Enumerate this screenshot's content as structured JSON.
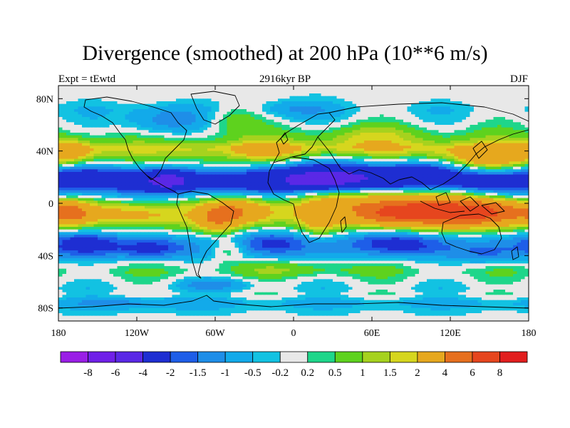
{
  "title": "Divergence (smoothed) at 200 hPa (10**6 m/s)",
  "subtitle_left": "Expt = tEwtd",
  "subtitle_center": "2916kyr BP",
  "subtitle_right": "DJF",
  "chart_data": {
    "type": "heatmap",
    "projection": "cylindrical-equidistant",
    "variable": "Divergence (smoothed) at 200 hPa",
    "units": "10**6 m/s",
    "experiment": "tEwtd",
    "period": "2916kyr BP",
    "season": "DJF",
    "x_range": [
      -180,
      180
    ],
    "y_range": [
      -90,
      90
    ],
    "x_ticks": [
      {
        "value": -180,
        "label": "180"
      },
      {
        "value": -120,
        "label": "120W"
      },
      {
        "value": -60,
        "label": "60W"
      },
      {
        "value": 0,
        "label": "0"
      },
      {
        "value": 60,
        "label": "60E"
      },
      {
        "value": 120,
        "label": "120E"
      },
      {
        "value": 180,
        "label": "180"
      }
    ],
    "y_ticks": [
      {
        "value": 80,
        "label": "80N"
      },
      {
        "value": 40,
        "label": "40N"
      },
      {
        "value": 0,
        "label": "0"
      },
      {
        "value": -40,
        "label": "40S"
      },
      {
        "value": -80,
        "label": "80S"
      }
    ],
    "contour_levels": [
      {
        "value": "-8",
        "label": "-8"
      },
      {
        "value": "-6",
        "label": "-6"
      },
      {
        "value": "-4",
        "label": "-4"
      },
      {
        "value": "-2",
        "label": "-2"
      },
      {
        "value": "-1.5",
        "label": "-1.5"
      },
      {
        "value": "-1",
        "label": "-1"
      },
      {
        "value": "-0.5",
        "label": "-0.5"
      },
      {
        "value": "-0.2",
        "label": "-0.2"
      },
      {
        "value": "0.2",
        "label": "0.2"
      },
      {
        "value": "0.5",
        "label": "0.5"
      },
      {
        "value": "1",
        "label": "1"
      },
      {
        "value": "1.5",
        "label": "1.5"
      },
      {
        "value": "2",
        "label": "2"
      },
      {
        "value": "4",
        "label": "4"
      },
      {
        "value": "6",
        "label": "6"
      },
      {
        "value": "8",
        "label": "8"
      }
    ],
    "colors": [
      "#9a1ee6",
      "#7020e8",
      "#5a28e6",
      "#1e2ed2",
      "#1e5ee8",
      "#1e8ee8",
      "#12aaea",
      "#12c2e2",
      "#e8e8e8",
      "#1ed68a",
      "#5ed21e",
      "#a6d21e",
      "#d6d61e",
      "#e6a81e",
      "#e6701e",
      "#e6461e",
      "#e21e1e"
    ],
    "band_profile": [
      {
        "lat": 88,
        "value": 0.0
      },
      {
        "lat": 80,
        "value": 0.0
      },
      {
        "lat": 72,
        "value": -0.3
      },
      {
        "lat": 64,
        "value": -0.1
      },
      {
        "lat": 56,
        "value": 0.3
      },
      {
        "lat": 48,
        "value": 0.8
      },
      {
        "lat": 42,
        "value": 1.8
      },
      {
        "lat": 36,
        "value": 1.0
      },
      {
        "lat": 30,
        "value": 0.1
      },
      {
        "lat": 26,
        "value": -1.0
      },
      {
        "lat": 20,
        "value": -2.5
      },
      {
        "lat": 14,
        "value": -2.8
      },
      {
        "lat": 8,
        "value": -1.2
      },
      {
        "lat": 3,
        "value": -0.1
      },
      {
        "lat": -3,
        "value": 1.2
      },
      {
        "lat": -10,
        "value": 1.6
      },
      {
        "lat": -16,
        "value": 1.0
      },
      {
        "lat": -22,
        "value": 0.1
      },
      {
        "lat": -28,
        "value": -0.8
      },
      {
        "lat": -34,
        "value": -1.0
      },
      {
        "lat": -40,
        "value": -0.6
      },
      {
        "lat": -46,
        "value": 0.1
      },
      {
        "lat": -52,
        "value": 0.4
      },
      {
        "lat": -58,
        "value": 0.1
      },
      {
        "lat": -64,
        "value": -0.2
      },
      {
        "lat": -70,
        "value": 0.0
      },
      {
        "lat": -76,
        "value": -0.7
      },
      {
        "lat": -82,
        "value": -0.3
      },
      {
        "lat": -90,
        "value": 0.0
      }
    ],
    "anomalies": [
      {
        "lon": 105,
        "lat": -5,
        "value": 5.2,
        "rlon": 48,
        "rlat": 12
      },
      {
        "lon": 150,
        "lat": -7,
        "value": 3.4,
        "rlon": 28,
        "rlat": 10
      },
      {
        "lon": 40,
        "lat": 5,
        "value": 2.5,
        "rlon": 45,
        "rlat": 10
      },
      {
        "lon": 70,
        "lat": -8,
        "value": 2.2,
        "rlon": 25,
        "rlat": 8
      },
      {
        "lon": -40,
        "lat": -5,
        "value": 2.5,
        "rlon": 22,
        "rlat": 10
      },
      {
        "lon": -58,
        "lat": -12,
        "value": 2.6,
        "rlon": 14,
        "rlat": 10
      },
      {
        "lon": -170,
        "lat": -7,
        "value": 3.2,
        "rlon": 14,
        "rlat": 8
      },
      {
        "lon": 20,
        "lat": -12,
        "value": 1.6,
        "rlon": 14,
        "rlat": 12
      },
      {
        "lon": -120,
        "lat": -8,
        "value": 1.0,
        "rlon": 30,
        "rlat": 8
      },
      {
        "lon": 25,
        "lat": 20,
        "value": -3.0,
        "rlon": 38,
        "rlat": 14
      },
      {
        "lon": -95,
        "lat": 18,
        "value": -2.2,
        "rlon": 18,
        "rlat": 8
      },
      {
        "lon": -160,
        "lat": 24,
        "value": -1.0,
        "rlon": 25,
        "rlat": 8
      },
      {
        "lon": 100,
        "lat": 26,
        "value": -1.8,
        "rlon": 35,
        "rlat": 8
      },
      {
        "lon": 150,
        "lat": 34,
        "value": 2.6,
        "rlon": 30,
        "rlat": 10
      },
      {
        "lon": -170,
        "lat": 40,
        "value": 1.8,
        "rlon": 15,
        "rlat": 8
      },
      {
        "lon": -20,
        "lat": 40,
        "value": 1.5,
        "rlon": 25,
        "rlat": 8
      },
      {
        "lon": 60,
        "lat": 50,
        "value": 1.0,
        "rlon": 40,
        "rlat": 10
      },
      {
        "lon": -100,
        "lat": 62,
        "value": -1.4,
        "rlon": 30,
        "rlat": 12
      },
      {
        "lon": -45,
        "lat": 65,
        "value": 0.9,
        "rlon": 20,
        "rlat": 10
      },
      {
        "lon": 0,
        "lat": 72,
        "value": -0.8,
        "rlon": 30,
        "rlat": 8
      },
      {
        "lon": -160,
        "lat": -30,
        "value": -1.8,
        "rlon": 25,
        "rlat": 10
      },
      {
        "lon": -110,
        "lat": -35,
        "value": -1.5,
        "rlon": 25,
        "rlat": 8
      },
      {
        "lon": -15,
        "lat": -30,
        "value": -1.4,
        "rlon": 25,
        "rlat": 10
      },
      {
        "lon": 80,
        "lat": -30,
        "value": -1.6,
        "rlon": 35,
        "rlat": 10
      },
      {
        "lon": 150,
        "lat": -40,
        "value": -1.0,
        "rlon": 25,
        "rlat": 8
      },
      {
        "lon": -50,
        "lat": -35,
        "value": 1.3,
        "rlon": 14,
        "rlat": 8
      },
      {
        "lon": 0,
        "lat": -50,
        "value": 0.6,
        "rlon": 50,
        "rlat": 6
      },
      {
        "lon": -60,
        "lat": -62,
        "value": -1.0,
        "rlon": 30,
        "rlat": 5
      },
      {
        "lon": -120,
        "lat": -76,
        "value": -0.6,
        "rlon": 40,
        "rlat": 5
      }
    ]
  }
}
